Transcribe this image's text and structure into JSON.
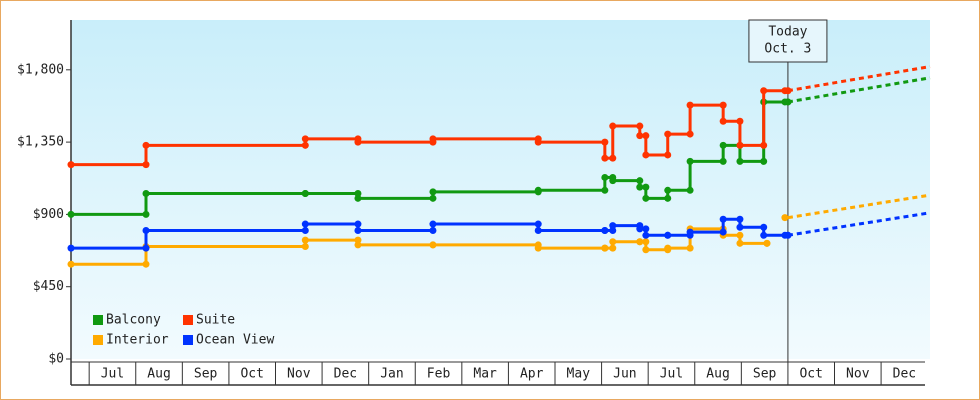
{
  "chart_data": {
    "type": "step-line",
    "categories": [
      "Jul",
      "Aug",
      "Sep",
      "Oct",
      "Nov",
      "Dec",
      "Jan",
      "Feb",
      "Mar",
      "Apr",
      "May",
      "Jun",
      "Jul",
      "Aug",
      "Sep",
      "Oct",
      "Nov",
      "Dec"
    ],
    "xlim": [
      -0.39,
      18.05
    ],
    "ylim": [
      0,
      2110
    ],
    "yticks": [
      {
        "value": 0,
        "label": "$0"
      },
      {
        "value": 450,
        "label": "$450"
      },
      {
        "value": 900,
        "label": "$900"
      },
      {
        "value": 1350,
        "label": "$1,350"
      },
      {
        "value": 1800,
        "label": "$1,800"
      }
    ],
    "today": {
      "x": 15.0,
      "label": [
        "Today",
        "Oct. 3"
      ]
    },
    "legend": "bottom-left",
    "series": [
      {
        "name": "Balcony",
        "color": "#119911",
        "x": [
          -0.39,
          1.22,
          4.64,
          5.77,
          7.38,
          9.64,
          11.07,
          11.24,
          11.82,
          11.95,
          12.42,
          12.9,
          13.61,
          13.97,
          14.48,
          15.0
        ],
        "values": [
          900,
          1030,
          1030,
          1000,
          1040,
          1050,
          1130,
          1110,
          1070,
          1000,
          1050,
          1230,
          1330,
          1230,
          1600,
          1600
        ],
        "forecast": {
          "x": [
            15.0,
            18.05
          ],
          "values": [
            1600,
            1750
          ]
        }
      },
      {
        "name": "Suite",
        "color": "#ff3300",
        "x": [
          -0.39,
          1.22,
          4.64,
          5.77,
          7.38,
          9.64,
          11.07,
          11.24,
          11.82,
          11.95,
          12.42,
          12.9,
          13.61,
          13.97,
          14.48,
          15.0
        ],
        "values": [
          1210,
          1330,
          1370,
          1350,
          1370,
          1350,
          1250,
          1450,
          1390,
          1270,
          1400,
          1580,
          1480,
          1330,
          1670,
          1670
        ],
        "forecast": {
          "x": [
            15.0,
            18.05
          ],
          "values": [
            1670,
            1820
          ]
        }
      },
      {
        "name": "Interior",
        "color": "#ffaa00",
        "x": [
          -0.39,
          1.22,
          4.64,
          5.77,
          7.38,
          9.64,
          11.07,
          11.24,
          11.82,
          11.95,
          12.42,
          12.9,
          13.61,
          13.97,
          14.55
        ],
        "values": [
          590,
          700,
          740,
          710,
          710,
          690,
          690,
          730,
          730,
          680,
          690,
          810,
          770,
          720,
          720
        ],
        "forecast": {
          "x": [
            15.0,
            18.05
          ],
          "values": [
            880,
            1020
          ]
        }
      },
      {
        "name": "Ocean View",
        "color": "#0033ff",
        "x": [
          -0.39,
          1.22,
          4.64,
          5.77,
          7.38,
          9.64,
          11.07,
          11.24,
          11.82,
          11.95,
          12.42,
          12.9,
          13.61,
          13.97,
          14.48,
          15.0
        ],
        "values": [
          690,
          800,
          840,
          800,
          840,
          800,
          800,
          830,
          810,
          770,
          770,
          790,
          870,
          820,
          770,
          770
        ],
        "forecast": {
          "x": [
            15.0,
            18.05
          ],
          "values": [
            770,
            910
          ]
        }
      }
    ]
  }
}
